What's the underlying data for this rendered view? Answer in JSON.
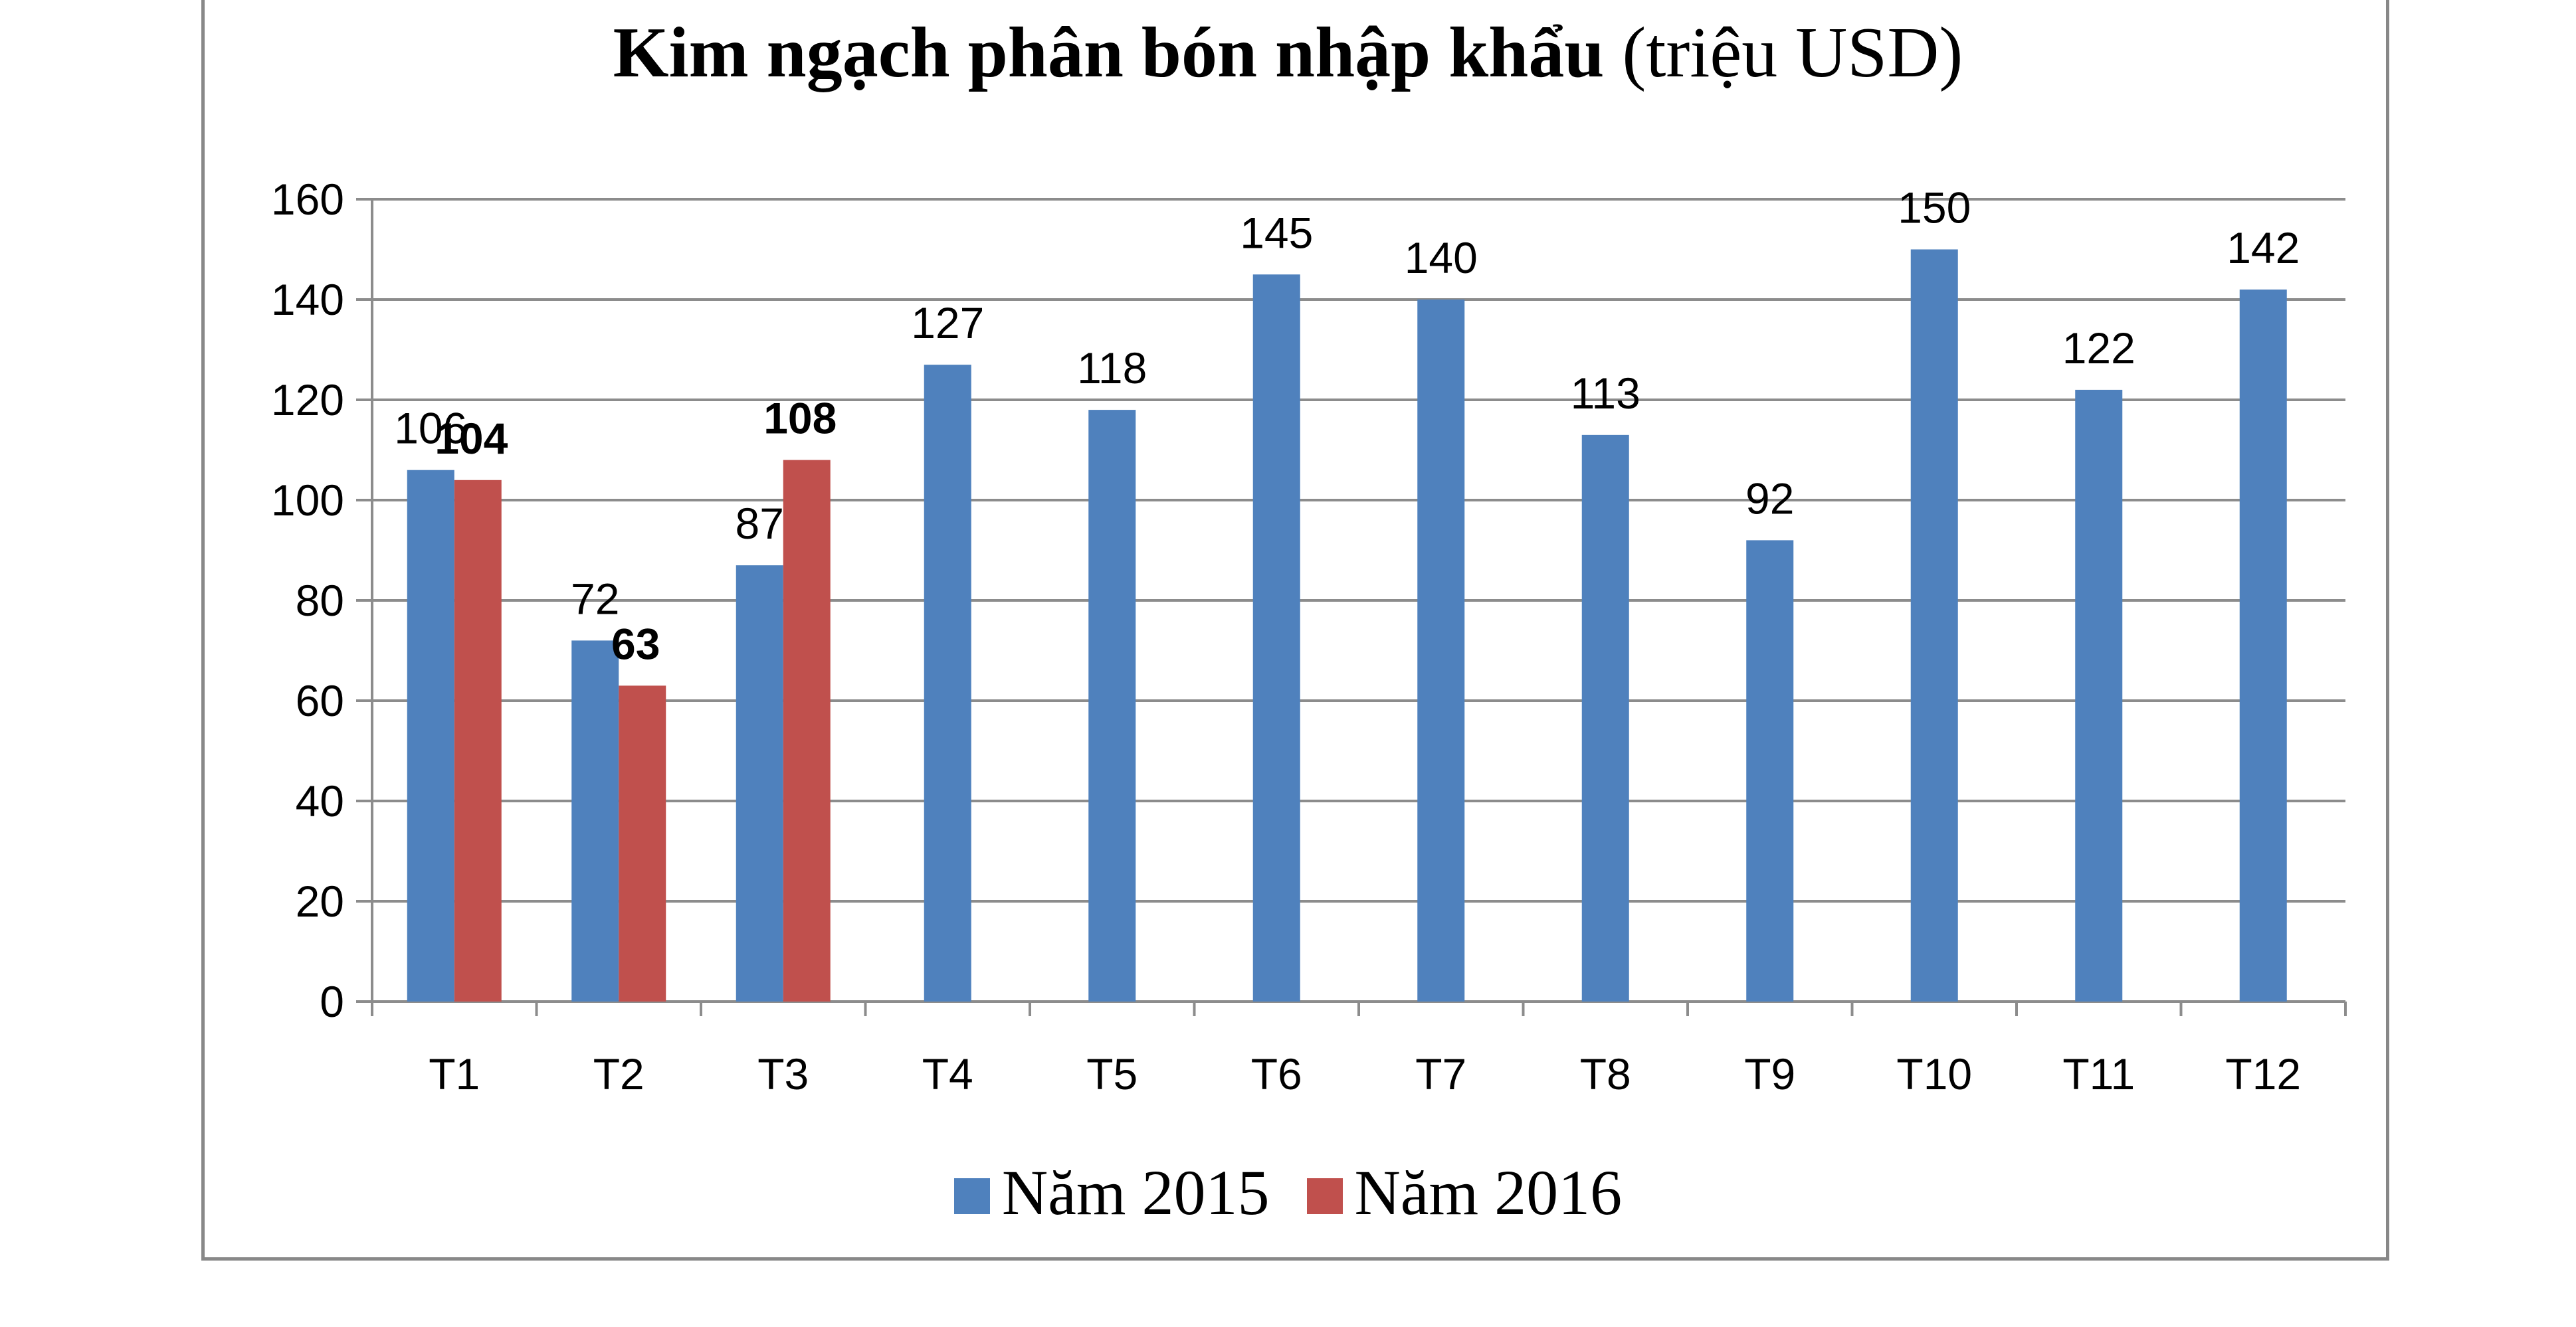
{
  "chart_data": {
    "type": "bar",
    "title": "Kim ngạch phân bón nhập khẩu",
    "title_unit": "(triệu USD)",
    "categories": [
      "T1",
      "T2",
      "T3",
      "T4",
      "T5",
      "T6",
      "T7",
      "T8",
      "T9",
      "T10",
      "T11",
      "T12"
    ],
    "series": [
      {
        "name": "Năm 2015",
        "color": "#4f81bd",
        "values": [
          106,
          72,
          87,
          127,
          118,
          145,
          140,
          113,
          92,
          150,
          122,
          142
        ],
        "labels": [
          "106",
          "72",
          "87",
          "127",
          "118",
          "145",
          "140",
          "113",
          "92",
          "150",
          "122",
          "142"
        ]
      },
      {
        "name": "Năm 2016",
        "color": "#c0504d",
        "values": [
          104,
          63,
          108,
          null,
          null,
          null,
          null,
          null,
          null,
          null,
          null,
          null
        ],
        "labels": [
          "104",
          "63",
          "108"
        ]
      }
    ],
    "ylim": [
      0,
      160
    ],
    "yticks": [
      "0",
      "20",
      "40",
      "60",
      "80",
      "100",
      "120",
      "140",
      "160"
    ],
    "grid": true,
    "legend": "bottom",
    "xlabel": "",
    "ylabel": ""
  }
}
